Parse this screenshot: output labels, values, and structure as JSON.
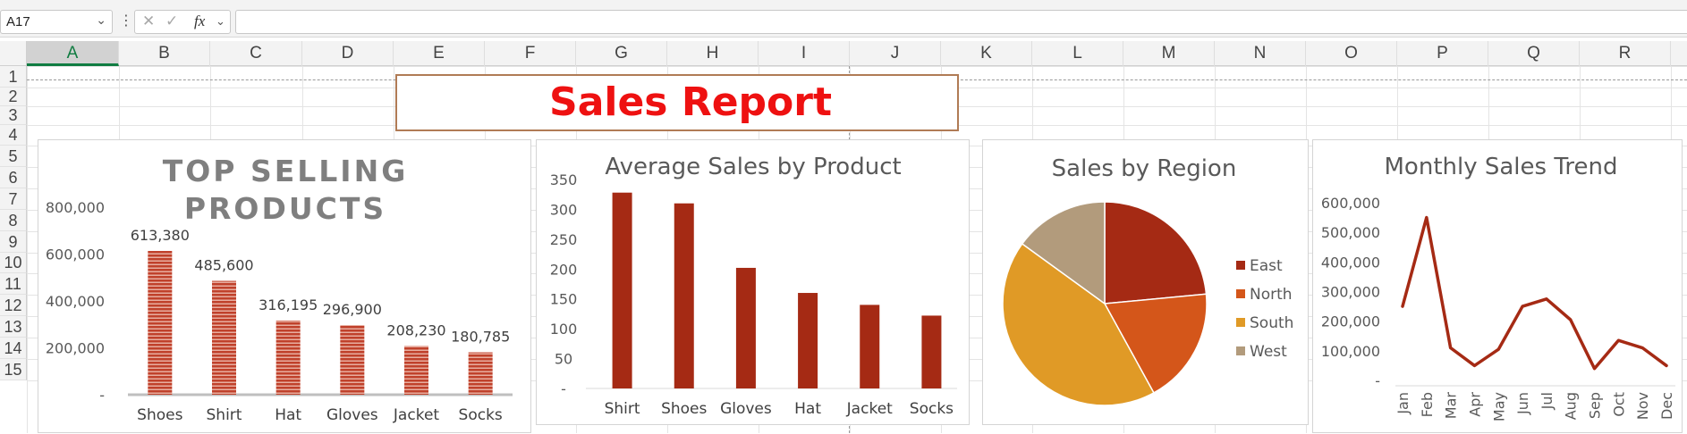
{
  "formula_bar": {
    "name_box": "A17",
    "formula": ""
  },
  "grid": {
    "columns": [
      "A",
      "B",
      "C",
      "D",
      "E",
      "F",
      "G",
      "H",
      "I",
      "J",
      "K",
      "L",
      "M",
      "N",
      "O",
      "P",
      "Q",
      "R"
    ],
    "active_column": "A",
    "rows": [
      "1",
      "2",
      "3",
      "4",
      "5",
      "6",
      "7",
      "8",
      "9",
      "10",
      "11",
      "12",
      "13",
      "14",
      "15"
    ]
  },
  "report_title": "Sales Report",
  "charts": {
    "top_selling": {
      "title_line1": "TOP SELLING",
      "title_line2": "PRODUCTS",
      "y_ticks": [
        "-",
        "200,000",
        "400,000",
        "600,000",
        "800,000"
      ],
      "bar_color": "#c0412b"
    },
    "average_sales": {
      "title": "Average Sales by Product",
      "y_ticks": [
        "-",
        "50",
        "100",
        "150",
        "200",
        "250",
        "300",
        "350"
      ],
      "bar_color": "#a52a14"
    },
    "region": {
      "title": "Sales by Region"
    },
    "monthly": {
      "title": "Monthly Sales Trend",
      "y_ticks": [
        "-",
        "100,000",
        "200,000",
        "300,000",
        "400,000",
        "500,000",
        "600,000"
      ],
      "line_color": "#a52a14"
    }
  },
  "chart_data": [
    {
      "type": "bar",
      "title": "TOP SELLING PRODUCTS",
      "categories": [
        "Shoes",
        "Shirt",
        "Hat",
        "Gloves",
        "Jacket",
        "Socks"
      ],
      "values": [
        613380,
        485600,
        316195,
        296900,
        208230,
        180785
      ],
      "data_labels": [
        "613,380",
        "485,600",
        "316,195",
        "296,900",
        "208,230",
        "180,785"
      ],
      "ylim": [
        0,
        800000
      ],
      "grid": false
    },
    {
      "type": "bar",
      "title": "Average Sales by Product",
      "categories": [
        "Shirt",
        "Shoes",
        "Gloves",
        "Hat",
        "Jacket",
        "Socks"
      ],
      "values": [
        328,
        310,
        202,
        160,
        140,
        122
      ],
      "ylim": [
        0,
        350
      ],
      "grid": false
    },
    {
      "type": "pie",
      "title": "Sales by Region",
      "categories": [
        "East",
        "North",
        "South",
        "West"
      ],
      "values": [
        23.5,
        18.5,
        43,
        15
      ],
      "colors": [
        "#a52a14",
        "#d4561a",
        "#e09a26",
        "#b29b7c"
      ],
      "legend": "right"
    },
    {
      "type": "line",
      "title": "Monthly Sales Trend",
      "categories": [
        "Jan",
        "Feb",
        "Mar",
        "Apr",
        "May",
        "Jun",
        "Jul",
        "Aug",
        "Sep",
        "Oct",
        "Nov",
        "Dec"
      ],
      "values": [
        250000,
        550000,
        110000,
        50000,
        105000,
        250000,
        275000,
        205000,
        40000,
        135000,
        110000,
        50000
      ],
      "ylim": [
        0,
        600000
      ],
      "grid": false
    }
  ]
}
